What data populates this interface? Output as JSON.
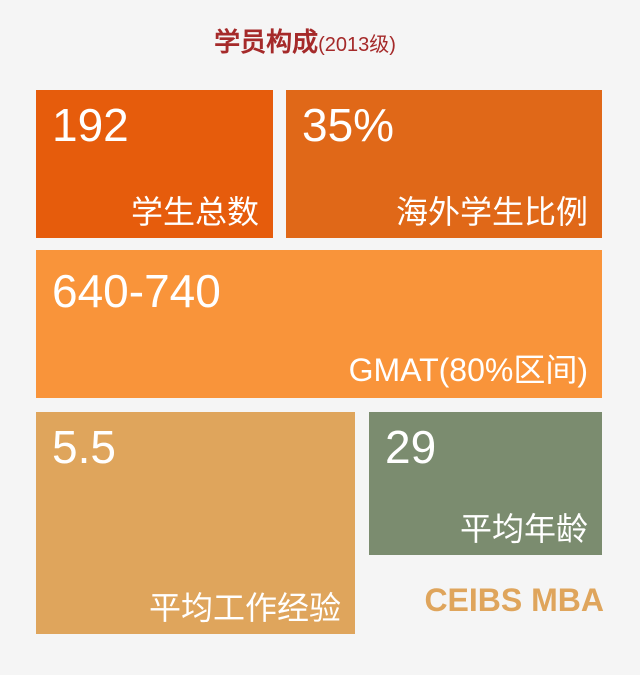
{
  "title": {
    "main": "学员构成",
    "sub": "(2013级)"
  },
  "tiles": [
    {
      "value": "192",
      "label": "学生总数",
      "color": "#e65c0c"
    },
    {
      "value": "35%",
      "label": "海外学生比例",
      "color": "#e06818"
    },
    {
      "value": "640-740",
      "label": "GMAT(80%区间)",
      "color": "#f9943a"
    },
    {
      "value": "5.5",
      "label": "平均工作经验",
      "color": "#dfa55c"
    },
    {
      "value": "29",
      "label": "平均年龄",
      "color": "#7b8c6f"
    }
  ],
  "brand": "CEIBS MBA"
}
